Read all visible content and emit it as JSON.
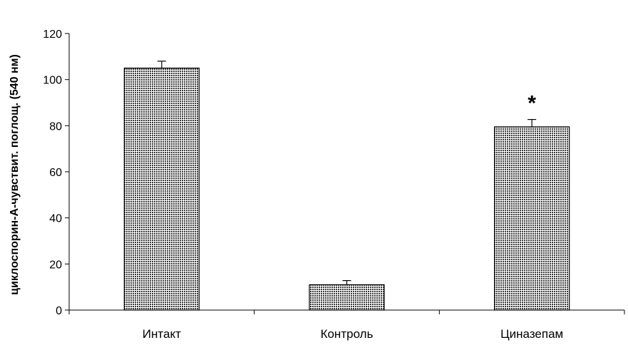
{
  "chart_data": {
    "type": "bar",
    "title": "",
    "xlabel": "",
    "ylabel": "циклоспорин-А-чувствит. поглощ. (540 нм)",
    "categories": [
      "Интакт",
      "Контроль",
      "Циназепам"
    ],
    "values": [
      105,
      11,
      79.5
    ],
    "errors": [
      3,
      1.8,
      3.2
    ],
    "ylim": [
      0,
      120
    ],
    "yticks": [
      "0",
      "20",
      "40",
      "60",
      "80",
      "100",
      "120"
    ],
    "annotations": [
      {
        "category": "Циназепам",
        "text": "*"
      }
    ],
    "grid": false,
    "legend": "none",
    "bar_color": "#6e6e6e",
    "axis_color": "#000000"
  }
}
